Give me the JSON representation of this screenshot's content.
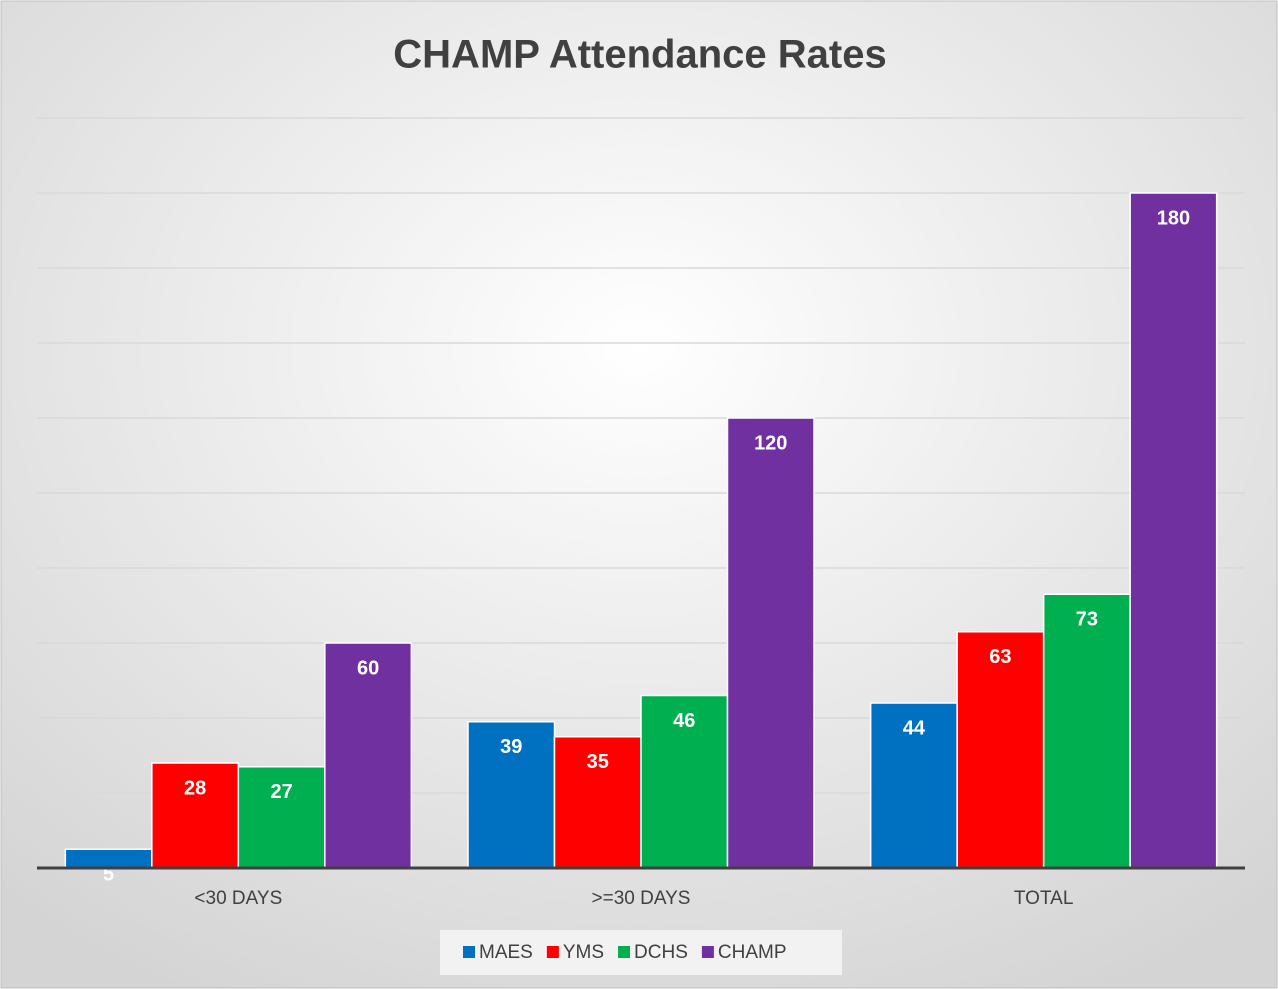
{
  "chart_data": {
    "type": "bar",
    "title": "CHAMP Attendance Rates",
    "categories": [
      "<30 DAYS",
      ">=30 DAYS",
      "TOTAL"
    ],
    "series": [
      {
        "name": "MAES",
        "color": "#0070c0",
        "values": [
          5,
          39,
          44
        ]
      },
      {
        "name": "YMS",
        "color": "#ff0000",
        "values": [
          28,
          35,
          63
        ]
      },
      {
        "name": "DCHS",
        "color": "#00b050",
        "values": [
          27,
          46,
          73
        ]
      },
      {
        "name": "CHAMP",
        "color": "#7030a0",
        "values": [
          60,
          120,
          180
        ]
      }
    ],
    "ylim": [
      0,
      200
    ],
    "yticks": [
      0,
      20,
      40,
      60,
      80,
      100,
      120,
      140,
      160,
      180,
      200
    ],
    "grid": true,
    "legend": "bottom"
  }
}
